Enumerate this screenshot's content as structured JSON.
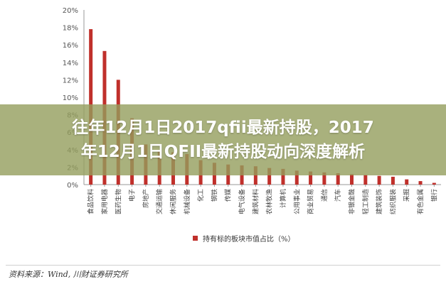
{
  "chart_data": {
    "type": "bar",
    "categories": [
      "食品饮料",
      "家用电器",
      "医药生物",
      "电子",
      "房地产",
      "交通运输",
      "休闲服务",
      "机械设备",
      "化工",
      "钢铁",
      "传媒",
      "电气设备",
      "建筑材料",
      "农林牧渔",
      "计算机",
      "公用事业",
      "商业贸易",
      "通信",
      "汽车",
      "非银金融",
      "轻工制造",
      "建筑装饰",
      "纺织服装",
      "采掘",
      "有色金属",
      "银行"
    ],
    "values": [
      17.8,
      15.3,
      12.0,
      7.6,
      4.6,
      3.9,
      3.7,
      3.5,
      2.8,
      2.5,
      2.3,
      2.2,
      2.1,
      1.9,
      1.8,
      1.6,
      1.5,
      1.4,
      1.3,
      1.2,
      1.1,
      1.0,
      0.9,
      0.6,
      0.4,
      0.2
    ],
    "ylim": [
      0,
      20
    ],
    "yticks": [
      "0%",
      "2%",
      "4%",
      "6%",
      "8%",
      "10%",
      "12%",
      "14%",
      "16%",
      "18%",
      "20%"
    ],
    "legend": "持有标的板块市值占比（%）",
    "legend_position": "bottom",
    "bar_color": "#c0302b"
  },
  "overlay": {
    "line1": "往年12月1日2017qfii最新持股，2017",
    "line2": "年12月1日QFII最新持股动向深度解析"
  },
  "source": "资料来源：Wind, 川财证券研究所"
}
